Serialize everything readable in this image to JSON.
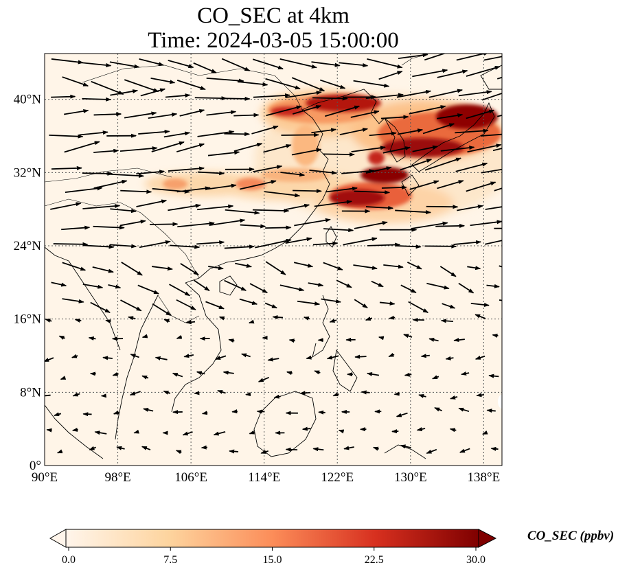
{
  "title": {
    "line1": "CO_SEC at 4km",
    "line2": "Time: 2024-03-05 15:00:00"
  },
  "map": {
    "lon_range": [
      90,
      140
    ],
    "lat_range": [
      0,
      45
    ],
    "lon_ticks": [
      "90°E",
      "98°E",
      "106°E",
      "114°E",
      "122°E",
      "130°E",
      "138°E"
    ],
    "lat_ticks": [
      "40°N",
      "32°N",
      "24°N",
      "16°N",
      "8°N",
      "0°"
    ],
    "gridlines": "dotted",
    "field": "CO_SEC",
    "vectors": "wind vectors (black arrows)"
  },
  "colorbar": {
    "label": "CO_SEC (ppbv)",
    "ticks": [
      "0.0",
      "7.5",
      "15.0",
      "22.5",
      "30.0"
    ],
    "range": [
      0,
      30
    ],
    "colors": [
      "#fff5eb",
      "#fdd49e",
      "#fc8d59",
      "#d7301f",
      "#7f0000"
    ]
  }
}
